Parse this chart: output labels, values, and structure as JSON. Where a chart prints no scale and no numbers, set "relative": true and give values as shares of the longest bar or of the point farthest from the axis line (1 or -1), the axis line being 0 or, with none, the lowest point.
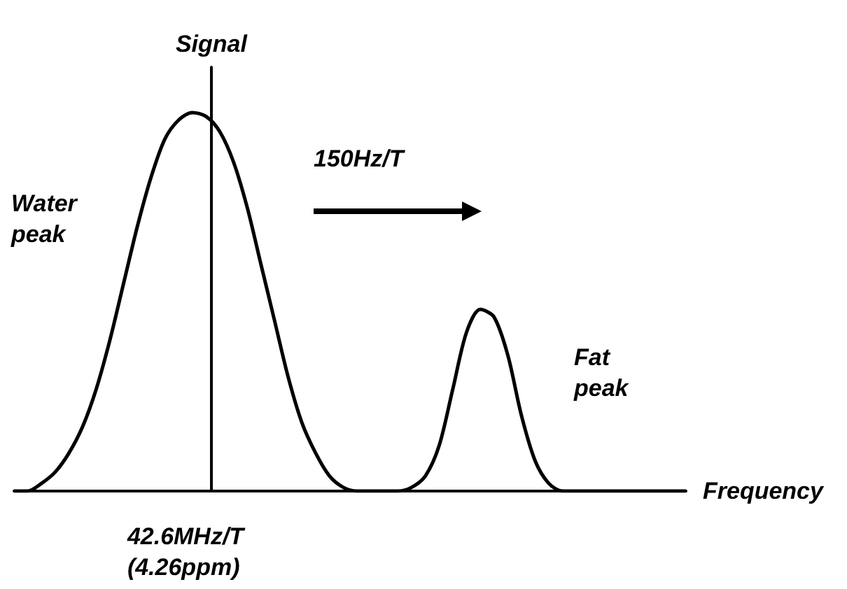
{
  "chart_data": {
    "type": "line",
    "relative": true,
    "xlabel": "Frequency",
    "ylabel": "Signal",
    "color": "#000000",
    "marker": "none",
    "grid": false,
    "categories": [
      null,
      null,
      null,
      null,
      null,
      null,
      null,
      null,
      null,
      null,
      null,
      null,
      null,
      null,
      null,
      null,
      null,
      null,
      null,
      null,
      null,
      null,
      null,
      null,
      null,
      null,
      null,
      null,
      null,
      null,
      null,
      null,
      null,
      null,
      null,
      null,
      null,
      null,
      null,
      null,
      null,
      null,
      null,
      null,
      null,
      null,
      null,
      null,
      null,
      null
    ],
    "values": [
      0,
      0,
      0.02,
      0.05,
      0.1,
      0.17,
      0.27,
      0.4,
      0.55,
      0.7,
      0.83,
      0.93,
      0.98,
      1,
      0.99,
      0.95,
      0.87,
      0.75,
      0.6,
      0.45,
      0.3,
      0.18,
      0.1,
      0.04,
      0.01,
      0,
      0,
      0,
      0,
      0.01,
      0.04,
      0.12,
      0.27,
      0.42,
      0.48,
      0.46,
      0.36,
      0.2,
      0.08,
      0.02,
      0,
      0,
      0,
      0,
      0,
      0,
      0,
      0,
      0,
      0
    ],
    "annotations": [
      "Water peak",
      "150Hz/T",
      "Fat peak",
      "42.6MHz/T (4.26ppm)"
    ]
  }
}
